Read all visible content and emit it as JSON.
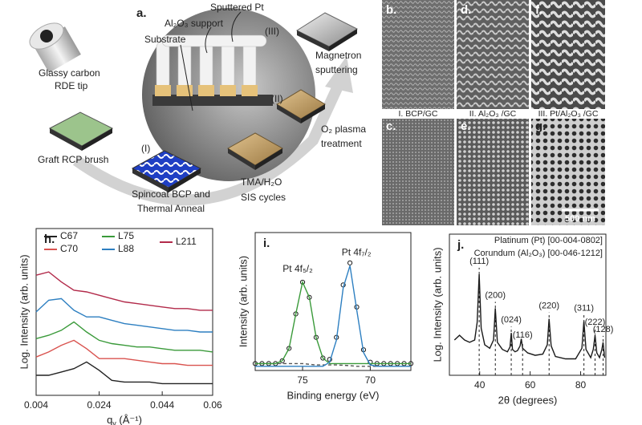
{
  "schematic": {
    "panel": "a.",
    "callouts": [
      "Sputtered Pt",
      "Al₂O₃ support",
      "Substrate"
    ],
    "tip": [
      "Glassy carbon",
      "RDE tip"
    ],
    "brush": "Graft RCP brush",
    "stages": [
      {
        "numeral": "(I)",
        "caption": [
          "Spincoat BCP and",
          "Thermal Anneal"
        ]
      },
      {
        "numeral": "(II)",
        "caption": [
          "O₂ plasma",
          "treatment"
        ]
      },
      {
        "numeral": "(III)",
        "caption": [
          "Magnetron",
          "sputtering"
        ]
      }
    ],
    "sis": [
      "TMA/H₂O",
      "SIS cycles"
    ]
  },
  "micrographs": {
    "panels": [
      "b.",
      "d.",
      "f.",
      "c.",
      "e.",
      "g."
    ],
    "captions": [
      "I. BCP/GC",
      "II. Al₂O₃ /GC",
      "III. Pt/Al₂O₃ /GC"
    ],
    "scale_bar": "500 nm"
  },
  "chart_data": [
    {
      "type": "line",
      "panel": "h.",
      "ylabel": "Log. Intensity (arb. units)",
      "xlabel": {
        "text": "q",
        "sub": "y",
        "tail": " (Å⁻¹)"
      },
      "x": [
        0.004,
        0.008,
        0.012,
        0.016,
        0.02,
        0.024,
        0.028,
        0.032,
        0.036,
        0.04,
        0.044,
        0.048,
        0.052,
        0.056,
        0.06
      ],
      "xlim": [
        0.004,
        0.06
      ],
      "xticks": [
        0.004,
        0.024,
        0.044,
        0.06
      ],
      "ylim": [
        0,
        10
      ],
      "legend": "top",
      "series": [
        {
          "name": "C67",
          "color": "#222222",
          "values": [
            1.2,
            1.2,
            1.4,
            1.6,
            2.0,
            1.5,
            0.9,
            0.8,
            0.8,
            0.8,
            0.7,
            0.7,
            0.7,
            0.7,
            0.7
          ]
        },
        {
          "name": "C70",
          "color": "#d9534f",
          "values": [
            2.3,
            2.6,
            3.0,
            3.3,
            2.8,
            2.2,
            2.2,
            2.2,
            2.1,
            2.0,
            1.9,
            1.9,
            1.8,
            1.8,
            1.8
          ]
        },
        {
          "name": "L75",
          "color": "#3a9a3a",
          "values": [
            3.4,
            3.6,
            3.9,
            4.4,
            3.8,
            3.3,
            3.1,
            3.0,
            2.9,
            2.9,
            2.8,
            2.7,
            2.7,
            2.7,
            2.6
          ]
        },
        {
          "name": "L88",
          "color": "#2d7fc1",
          "values": [
            5.0,
            5.7,
            5.8,
            5.1,
            4.7,
            4.7,
            4.5,
            4.3,
            4.2,
            4.1,
            4.0,
            3.9,
            3.9,
            3.8,
            3.8
          ]
        },
        {
          "name": "L211",
          "color": "#b22a4a",
          "values": [
            7.2,
            7.4,
            6.8,
            6.3,
            6.2,
            6.0,
            5.8,
            5.6,
            5.5,
            5.4,
            5.3,
            5.2,
            5.2,
            5.1,
            5.1
          ]
        }
      ]
    },
    {
      "type": "line",
      "panel": "i.",
      "ylabel": "Intensity (arb. units)",
      "xlabel": "Binding energy (eV)",
      "x": [
        78.5,
        78,
        77.5,
        77,
        76.5,
        76,
        75.5,
        75,
        74.5,
        74,
        73.5,
        73,
        72.5,
        72,
        71.5,
        71,
        70.5,
        70,
        69.5,
        69,
        68.5,
        68,
        67.5,
        67
      ],
      "xlim": [
        78.5,
        67
      ],
      "xticks": [
        75,
        70
      ],
      "ylim": [
        0,
        10
      ],
      "series": [
        {
          "color": "#1a1a1a",
          "marker": "circle",
          "values": [
            0.5,
            0.5,
            0.5,
            0.5,
            0.7,
            1.6,
            4.1,
            6.4,
            5.3,
            2.4,
            0.9,
            0.8,
            2.4,
            6.2,
            7.8,
            4.6,
            1.5,
            0.6,
            0.5,
            0.5,
            0.5,
            0.5,
            0.5,
            0.5
          ]
        },
        {
          "color": "#555555",
          "dash": true,
          "values": [
            0.5,
            0.5,
            0.5,
            0.5,
            0.5,
            0.5,
            0.5,
            0.5,
            0.45,
            0.4,
            0.4,
            0.4,
            0.4,
            0.38,
            0.35,
            0.3,
            0.3,
            0.3,
            0.3,
            0.3,
            0.3,
            0.3,
            0.3,
            0.3
          ]
        },
        {
          "name": "Pt 4f₅/₂",
          "color": "#3a9a3a",
          "values": [
            0.5,
            0.5,
            0.5,
            0.5,
            0.7,
            1.6,
            4.1,
            6.4,
            5.3,
            2.4,
            0.9,
            0.5,
            0.5,
            0.5,
            0.5,
            0.5,
            0.5,
            0.5,
            0.5,
            0.5,
            0.5,
            0.5,
            0.5,
            0.5
          ]
        },
        {
          "name": "Pt 4f₇/₂",
          "color": "#2d7fc1",
          "values": [
            0.3,
            0.3,
            0.3,
            0.3,
            0.3,
            0.3,
            0.3,
            0.3,
            0.3,
            0.3,
            0.3,
            0.6,
            2.2,
            6.0,
            7.6,
            4.4,
            1.3,
            0.4,
            0.3,
            0.3,
            0.3,
            0.3,
            0.3,
            0.3
          ]
        }
      ]
    },
    {
      "type": "line",
      "panel": "j.",
      "ylabel": "Log. Intensity (arb. units)",
      "xlabel": "2θ (degrees)",
      "x": [
        30,
        32,
        34,
        36,
        38,
        39,
        39.8,
        40.6,
        42,
        44,
        45.5,
        46.2,
        47,
        49,
        51,
        52,
        52.5,
        53,
        54,
        55,
        56,
        56.5,
        57,
        59,
        62,
        65,
        66.8,
        67.5,
        68.3,
        70,
        74,
        78,
        80.5,
        81.3,
        82.1,
        84,
        85,
        85.7,
        86.4,
        87.5,
        88.4,
        88.9,
        89.5
      ],
      "xlim": [
        28,
        90
      ],
      "xticks": [
        40,
        60,
        80
      ],
      "ylim": [
        0,
        12
      ],
      "series": [
        {
          "color": "#1a1a1a",
          "values": [
            3.0,
            3.4,
            3.0,
            2.8,
            3.0,
            4.5,
            8.6,
            4.0,
            2.6,
            2.3,
            3.0,
            5.7,
            2.8,
            2.2,
            2.0,
            2.4,
            3.6,
            2.2,
            2.0,
            2.1,
            2.5,
            3.1,
            2.3,
            1.9,
            1.7,
            1.8,
            2.6,
            4.8,
            2.5,
            1.6,
            1.4,
            1.4,
            2.3,
            4.6,
            2.2,
            1.5,
            2.2,
            3.4,
            1.9,
            1.5,
            2.2,
            2.8,
            1.5
          ]
        }
      ],
      "references": [
        {
          "name": "Platinum (Pt) [00-004-0802]",
          "color": "#2d7fc1",
          "peaks": [
            {
              "label": "(111)",
              "x": 39.8
            },
            {
              "label": "(200)",
              "x": 46.2
            },
            {
              "label": "(220)",
              "x": 67.5
            },
            {
              "label": "(311)",
              "x": 81.3
            },
            {
              "label": "(222)",
              "x": 85.7
            }
          ]
        },
        {
          "name": "Corundum (Al₂O₃) [00-046-1212]",
          "color": "#3a9a3a",
          "peaks": [
            {
              "label": "(024)",
              "x": 52.5
            },
            {
              "label": "(116)",
              "x": 57
            },
            {
              "label": "(128)",
              "x": 88.9
            }
          ]
        }
      ]
    }
  ]
}
